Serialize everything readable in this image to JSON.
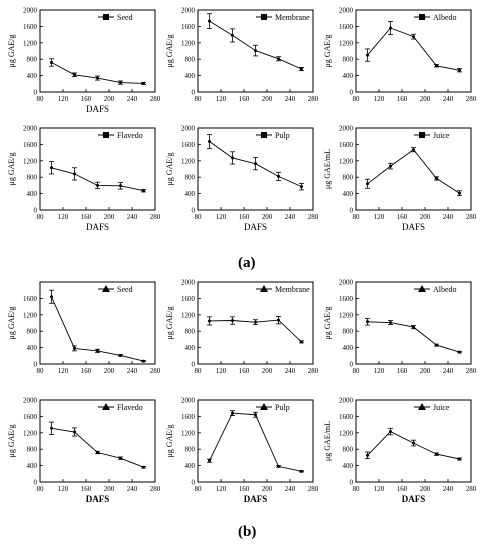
{
  "figure": {
    "label_a": "(a)",
    "label_b": "(b)"
  },
  "chart_data": [
    {
      "type": "line",
      "group": "a",
      "marker": "square",
      "title": "",
      "xlabel": "DAFS",
      "ylabel": "μg GAE/g",
      "xlim": [
        80,
        280
      ],
      "xticks": [
        80,
        120,
        160,
        200,
        240,
        280
      ],
      "ylim": [
        0,
        2000
      ],
      "yticks": [
        0,
        400,
        800,
        1200,
        1600,
        2000
      ],
      "series": [
        {
          "name": "Seed",
          "x": [
            100,
            140,
            180,
            220,
            260
          ],
          "values": [
            720,
            420,
            340,
            230,
            210
          ],
          "err": [
            90,
            45,
            50,
            40,
            25
          ]
        }
      ]
    },
    {
      "type": "line",
      "group": "a",
      "marker": "square",
      "title": "",
      "xlabel": "",
      "ylabel": "μg GAE/g",
      "xlim": [
        80,
        280
      ],
      "xticks": [
        80,
        120,
        160,
        200,
        240,
        280
      ],
      "ylim": [
        0,
        2000
      ],
      "yticks": [
        0,
        400,
        800,
        1200,
        1600,
        2000
      ],
      "series": [
        {
          "name": "Membrane",
          "x": [
            100,
            140,
            180,
            220,
            260
          ],
          "values": [
            1730,
            1380,
            1010,
            810,
            560
          ],
          "err": [
            180,
            160,
            130,
            50,
            40
          ]
        }
      ]
    },
    {
      "type": "line",
      "group": "a",
      "marker": "square",
      "title": "",
      "xlabel": "",
      "ylabel": "μg GAE/g",
      "xlim": [
        80,
        280
      ],
      "xticks": [
        80,
        120,
        160,
        200,
        240,
        280
      ],
      "ylim": [
        0,
        2000
      ],
      "yticks": [
        0,
        400,
        800,
        1200,
        1600,
        2000
      ],
      "series": [
        {
          "name": "Albedo",
          "x": [
            100,
            140,
            180,
            220,
            260
          ],
          "values": [
            900,
            1560,
            1350,
            640,
            530
          ],
          "err": [
            150,
            160,
            60,
            30,
            40
          ]
        }
      ]
    },
    {
      "type": "line",
      "group": "a",
      "marker": "square",
      "title": "",
      "xlabel": "DAFS",
      "ylabel": "μg GAE/g",
      "xlim": [
        80,
        280
      ],
      "xticks": [
        80,
        120,
        160,
        200,
        240,
        280
      ],
      "ylim": [
        0,
        2000
      ],
      "yticks": [
        0,
        400,
        800,
        1200,
        1600,
        2000
      ],
      "series": [
        {
          "name": "Flavedo",
          "x": [
            100,
            140,
            180,
            220,
            260
          ],
          "values": [
            1030,
            880,
            600,
            590,
            470
          ],
          "err": [
            150,
            150,
            80,
            80,
            30
          ]
        }
      ]
    },
    {
      "type": "line",
      "group": "a",
      "marker": "square",
      "title": "",
      "xlabel": "DAFS",
      "ylabel": "μg GAE/g",
      "xlim": [
        80,
        280
      ],
      "xticks": [
        80,
        120,
        160,
        200,
        240,
        280
      ],
      "ylim": [
        0,
        2000
      ],
      "yticks": [
        0,
        400,
        800,
        1200,
        1600,
        2000
      ],
      "series": [
        {
          "name": "Pulp",
          "x": [
            100,
            140,
            180,
            220,
            260
          ],
          "values": [
            1670,
            1270,
            1130,
            820,
            570
          ],
          "err": [
            170,
            150,
            150,
            100,
            80
          ]
        }
      ]
    },
    {
      "type": "line",
      "group": "a",
      "marker": "square",
      "title": "",
      "xlabel": "DAFS",
      "ylabel": "μg GAE/mL",
      "xlim": [
        80,
        280
      ],
      "xticks": [
        80,
        120,
        160,
        200,
        240,
        280
      ],
      "ylim": [
        0,
        2000
      ],
      "yticks": [
        0,
        400,
        800,
        1200,
        1600,
        2000
      ],
      "series": [
        {
          "name": "Juice",
          "x": [
            100,
            140,
            180,
            220,
            260
          ],
          "values": [
            640,
            1070,
            1470,
            770,
            410
          ],
          "err": [
            110,
            70,
            50,
            40,
            60
          ]
        }
      ]
    },
    {
      "type": "line",
      "group": "b",
      "marker": "triangle",
      "title": "",
      "xlabel": "",
      "ylabel": "μg GAE/g",
      "xlim": [
        80,
        280
      ],
      "xticks": [
        80,
        120,
        160,
        200,
        240,
        280
      ],
      "ylim": [
        0,
        2000
      ],
      "yticks": [
        0,
        400,
        800,
        1200,
        1600
      ],
      "series": [
        {
          "name": "Seed",
          "x": [
            100,
            140,
            180,
            220,
            260
          ],
          "values": [
            1640,
            380,
            320,
            210,
            70
          ],
          "err": [
            160,
            60,
            40,
            20,
            15
          ]
        }
      ]
    },
    {
      "type": "line",
      "group": "b",
      "marker": "triangle",
      "title": "",
      "xlabel": "",
      "ylabel": "μg GAE/g",
      "xlim": [
        80,
        280
      ],
      "xticks": [
        80,
        120,
        160,
        200,
        240,
        280
      ],
      "ylim": [
        0,
        2000
      ],
      "yticks": [
        0,
        400,
        800,
        1200,
        1600,
        2000
      ],
      "series": [
        {
          "name": "Membrane",
          "x": [
            100,
            140,
            180,
            220,
            260
          ],
          "values": [
            1050,
            1060,
            1020,
            1070,
            540
          ],
          "err": [
            100,
            90,
            60,
            90,
            25
          ]
        }
      ]
    },
    {
      "type": "line",
      "group": "b",
      "marker": "triangle",
      "title": "",
      "xlabel": "",
      "ylabel": "μg GAE/g",
      "xlim": [
        80,
        280
      ],
      "xticks": [
        80,
        120,
        160,
        200,
        240,
        280
      ],
      "ylim": [
        0,
        2000
      ],
      "yticks": [
        0,
        400,
        800,
        1200,
        1600,
        2000
      ],
      "series": [
        {
          "name": "Albedo",
          "x": [
            100,
            140,
            180,
            220,
            260
          ],
          "values": [
            1030,
            1010,
            900,
            460,
            290
          ],
          "err": [
            80,
            50,
            40,
            25,
            20
          ]
        }
      ]
    },
    {
      "type": "line",
      "group": "b",
      "marker": "triangle",
      "title": "",
      "xlabel": "DAFS",
      "ylabel": "μg GAE/g",
      "xlim": [
        80,
        280
      ],
      "xticks": [
        80,
        120,
        160,
        200,
        240,
        280
      ],
      "ylim": [
        0,
        2000
      ],
      "yticks": [
        0,
        400,
        800,
        1200,
        1600,
        2000
      ],
      "series": [
        {
          "name": "Flavedo",
          "x": [
            100,
            140,
            180,
            220,
            260
          ],
          "values": [
            1310,
            1220,
            720,
            580,
            360
          ],
          "err": [
            150,
            100,
            30,
            30,
            20
          ]
        }
      ]
    },
    {
      "type": "line",
      "group": "b",
      "marker": "triangle",
      "title": "",
      "xlabel": "DAFS",
      "ylabel": "μg GAE/g",
      "xlim": [
        80,
        280
      ],
      "xticks": [
        80,
        120,
        160,
        200,
        240,
        280
      ],
      "ylim": [
        0,
        2000
      ],
      "yticks": [
        0,
        400,
        800,
        1200,
        1600,
        2000
      ],
      "series": [
        {
          "name": "Pulp",
          "x": [
            100,
            140,
            180,
            220,
            260
          ],
          "values": [
            520,
            1680,
            1640,
            380,
            260
          ],
          "err": [
            40,
            60,
            60,
            20,
            15
          ]
        }
      ]
    },
    {
      "type": "line",
      "group": "b",
      "marker": "triangle",
      "title": "",
      "xlabel": "DAFS",
      "ylabel": "μg GAE/mL",
      "xlim": [
        80,
        280
      ],
      "xticks": [
        80,
        120,
        160,
        200,
        240,
        280
      ],
      "ylim": [
        0,
        2000
      ],
      "yticks": [
        0,
        400,
        800,
        1200,
        1600,
        2000
      ],
      "series": [
        {
          "name": "Juice",
          "x": [
            100,
            140,
            180,
            220,
            260
          ],
          "values": [
            650,
            1230,
            950,
            680,
            560
          ],
          "err": [
            80,
            80,
            70,
            30,
            25
          ]
        }
      ]
    }
  ]
}
